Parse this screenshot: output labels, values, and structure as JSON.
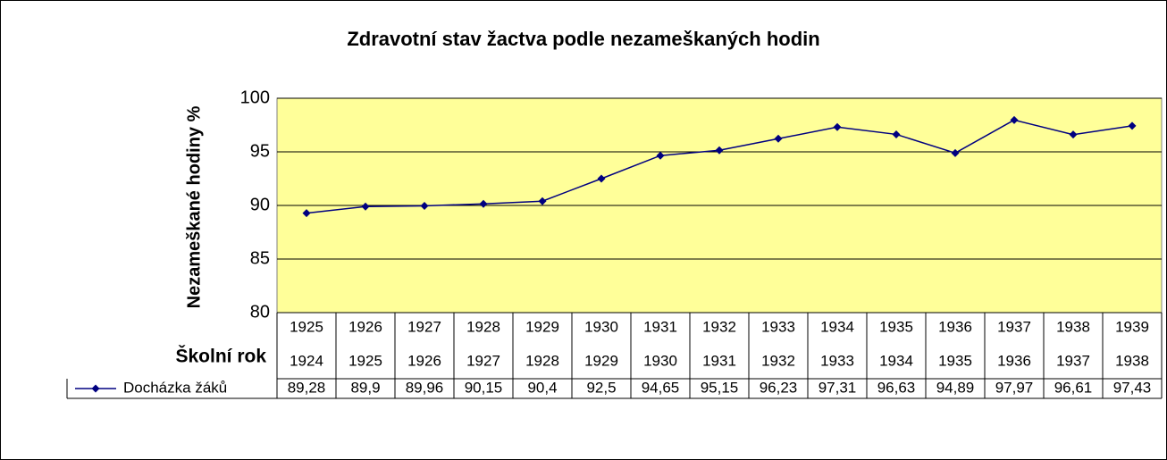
{
  "chart_data": {
    "type": "line",
    "title": "Zdravotní stav žactva podle nezameškaných hodin",
    "y_label": "Nezameškané hodiny %",
    "x_label": "Školní rok",
    "categories": [
      [
        "1925",
        "1924"
      ],
      [
        "1926",
        "1925"
      ],
      [
        "1927",
        "1926"
      ],
      [
        "1928",
        "1927"
      ],
      [
        "1929",
        "1928"
      ],
      [
        "1930",
        "1929"
      ],
      [
        "1931",
        "1930"
      ],
      [
        "1932",
        "1931"
      ],
      [
        "1933",
        "1932"
      ],
      [
        "1934",
        "1933"
      ],
      [
        "1935",
        "1934"
      ],
      [
        "1936",
        "1935"
      ],
      [
        "1937",
        "1936"
      ],
      [
        "1938",
        "1937"
      ],
      [
        "1939",
        "1938"
      ]
    ],
    "series": [
      {
        "name": "Docházka žáků",
        "color": "#000080",
        "values": [
          89.28,
          89.9,
          89.96,
          90.15,
          90.4,
          92.5,
          94.65,
          95.15,
          96.23,
          97.31,
          96.63,
          94.89,
          97.97,
          96.61,
          97.43
        ],
        "value_labels": [
          "89,28",
          "89,9",
          "89,96",
          "90,15",
          "90,4",
          "92,5",
          "94,65",
          "95,15",
          "96,23",
          "97,31",
          "96,63",
          "94,89",
          "97,97",
          "96,61",
          "97,43"
        ]
      }
    ],
    "ylim": [
      80,
      100
    ],
    "yticks": [
      80,
      85,
      90,
      95,
      100
    ],
    "grid": true,
    "plot_background": "#ffff99"
  }
}
